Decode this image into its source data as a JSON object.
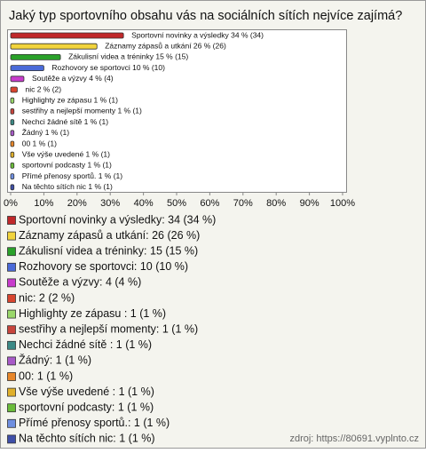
{
  "chart_data": {
    "type": "bar",
    "orientation": "horizontal",
    "title": "Jaký typ sportovního obsahu vás na sociálních sítích nejvíce zajímá?",
    "categories": [
      "Sportovní novinky a výsledky",
      "Záznamy zápasů a utkání",
      "Zákulisní videa a tréninky",
      "Rozhovory se sportovci",
      "Soutěže a výzvy",
      "nic",
      "Highlighty ze zápasu ",
      "sestřihy a nejlepší momenty",
      "Nechci žádné sítě ",
      "Žádný",
      "00",
      "Vše výše uvedené ",
      "sportovní podcasty",
      "Přímé přenosy  sportů.",
      "Na těchto sítích nic"
    ],
    "values": [
      34,
      26,
      15,
      10,
      4,
      2,
      1,
      1,
      1,
      1,
      1,
      1,
      1,
      1,
      1
    ],
    "value_labels": [
      "Sportovní novinky a výsledky 34 % (34)",
      "Záznamy zápasů a utkání 26 % (26)",
      "Zákulisní videa a tréninky 15 % (15)",
      "Rozhovory se sportovci 10 % (10)",
      "Soutěže a výzvy 4 % (4)",
      "nic 2 % (2)",
      "Highlighty ze zápasu  1 % (1)",
      "sestřihy a nejlepší momenty 1 % (1)",
      "Nechci žádné sítě  1 % (1)",
      "Žádný 1 % (1)",
      "00 1 % (1)",
      "Vše výše uvedené  1 % (1)",
      "sportovní podcasty 1 % (1)",
      "Přímé přenosy  sportů. 1 % (1)",
      "Na těchto sítích nic 1 % (1)"
    ],
    "legend": [
      "Sportovní novinky a výsledky: 34 (34 %)",
      "Záznamy zápasů a utkání: 26 (26 %)",
      "Zákulisní videa a tréninky: 15 (15 %)",
      "Rozhovory se sportovci: 10 (10 %)",
      "Soutěže a výzvy: 4 (4 %)",
      "nic: 2 (2 %)",
      "Highlighty ze zápasu : 1 (1 %)",
      "sestřihy a nejlepší momenty: 1 (1 %)",
      "Nechci žádné sítě : 1 (1 %)",
      "Žádný: 1 (1 %)",
      "00: 1 (1 %)",
      "Vše výše uvedené : 1 (1 %)",
      "sportovní podcasty: 1 (1 %)",
      "Přímé přenosy  sportů.: 1 (1 %)",
      "Na těchto sítích nic: 1 (1 %)"
    ],
    "colors": [
      "#c0282a",
      "#f2d43c",
      "#2aa12a",
      "#4a6ad8",
      "#c83ccc",
      "#d8452e",
      "#9ad86a",
      "#c8453c",
      "#3c8a86",
      "#a85ac8",
      "#e8872a",
      "#e0b02a",
      "#6abc3a",
      "#6f8fe0",
      "#3f4fa8"
    ],
    "xlim": [
      0,
      100
    ],
    "xticks": [
      {
        "value": 0,
        "label": "0%"
      },
      {
        "value": 10,
        "label": "10%"
      },
      {
        "value": 20,
        "label": "20%"
      },
      {
        "value": 30,
        "label": "30%"
      },
      {
        "value": 40,
        "label": "40%"
      },
      {
        "value": 50,
        "label": "50%"
      },
      {
        "value": 60,
        "label": "60%"
      },
      {
        "value": 70,
        "label": "70%"
      },
      {
        "value": 80,
        "label": "80%"
      },
      {
        "value": 90,
        "label": "90%"
      },
      {
        "value": 100,
        "label": "100%"
      }
    ],
    "grid": false,
    "source": "zdroj: https://80691.vyplnto.cz"
  }
}
